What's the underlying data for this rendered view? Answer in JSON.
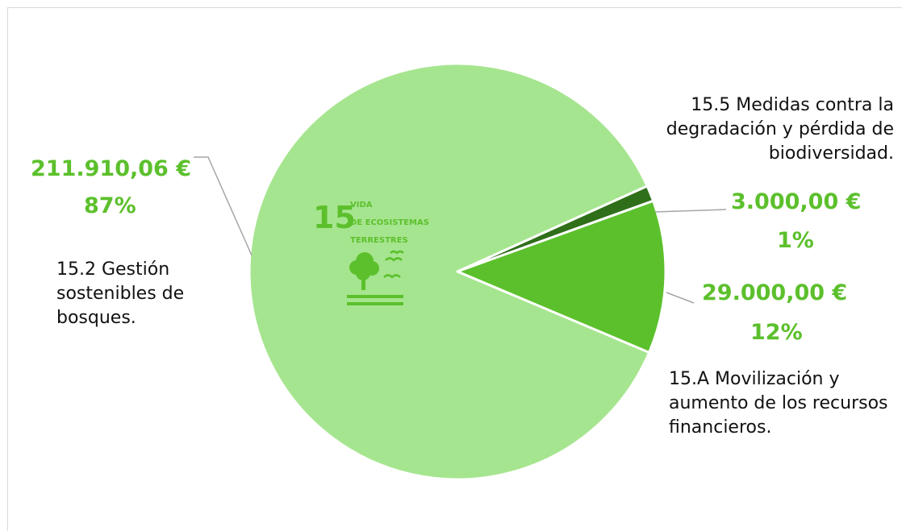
{
  "chart_data": {
    "type": "pie",
    "slices": [
      {
        "category": "15.2 Gestión sostenibles de bosques.",
        "value": 211910.06,
        "value_label": "211.910,06 €",
        "percent_label": "87%",
        "color": "#a6e58f"
      },
      {
        "category": "15.5 Medidas contra la degradación y pérdida de biodiversidad.",
        "value": 3000.0,
        "value_label": "3.000,00 €",
        "percent_label": "1%",
        "color": "#2f6f1a"
      },
      {
        "category": "15.A Movilización y aumento de los recursos financieros.",
        "value": 29000.0,
        "value_label": "29.000,00 €",
        "percent_label": "12%",
        "color": "#5cc02c"
      }
    ]
  },
  "emblem": {
    "number": "15",
    "line1": "VIDA",
    "line2": "DE ECOSISTEMAS",
    "line3": "TERRESTRES",
    "icon": "tree-birds-icon",
    "color": "#5cc02c"
  },
  "labels": {
    "slice0_category": "15.2 Gestión sostenibles de bosques.",
    "slice1_category": "15.5 Medidas contra la degradación y pérdida de biodiversidad.",
    "slice2_category": "15.A Movilización y aumento de los recursos financieros."
  }
}
